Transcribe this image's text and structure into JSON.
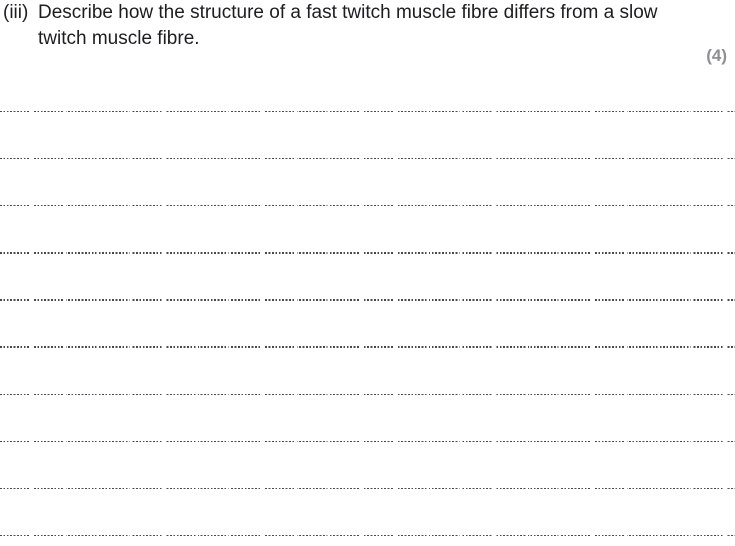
{
  "question": {
    "number": "(iii)",
    "text": "Describe how the structure of a fast twitch muscle fibre differs from a slow twitch muscle fibre.",
    "marks": "(4)"
  },
  "answer_area": {
    "line_count": 10
  },
  "colors": {
    "text": "#1d1d1f",
    "marks_gray": "#8e8e93",
    "dotted_line": "#46494f",
    "background": "#ffffff"
  }
}
